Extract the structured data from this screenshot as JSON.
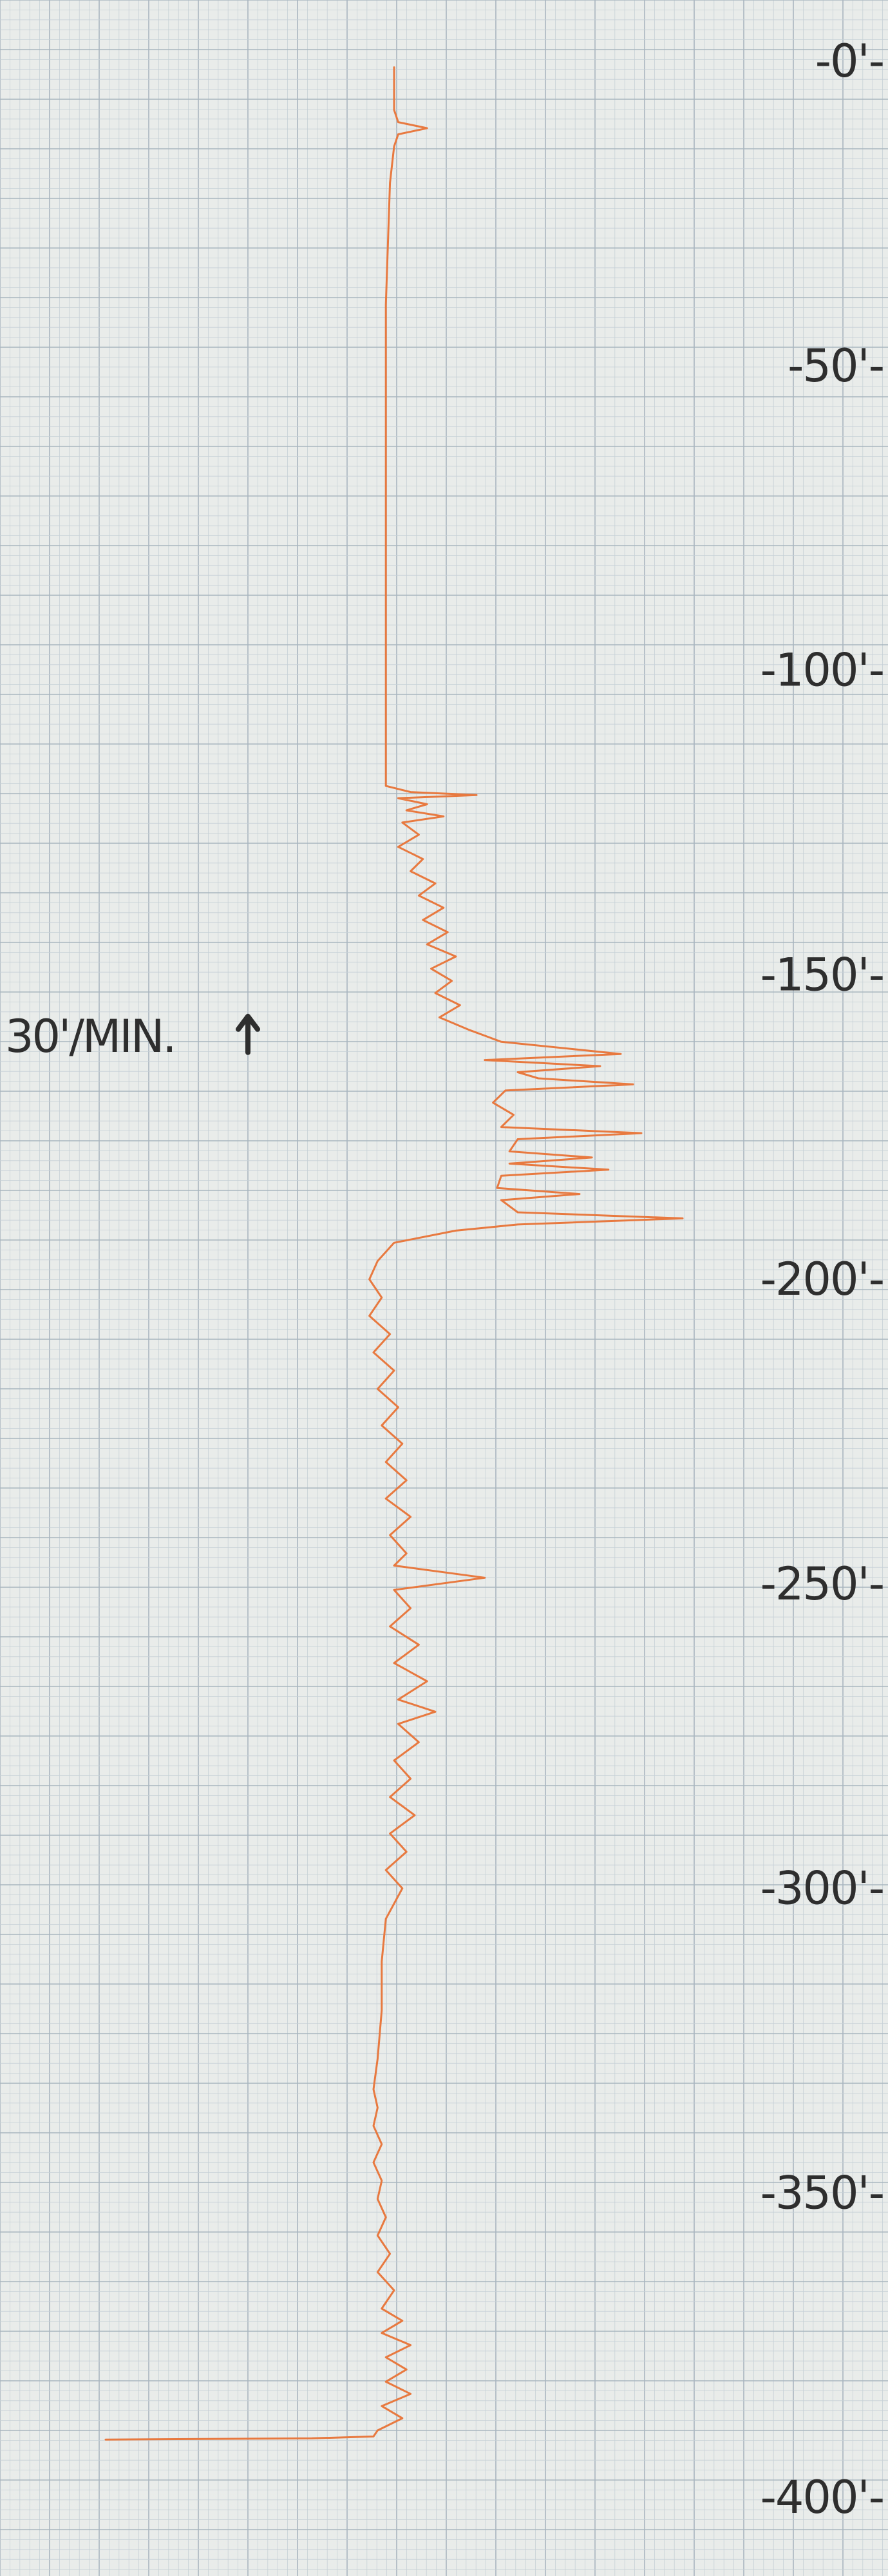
{
  "chart_data": {
    "type": "line",
    "title": "",
    "xlabel": "",
    "ylabel": "",
    "ylim": [
      0,
      400
    ],
    "y_inverted": true,
    "grid": true,
    "colors": {
      "paper": "#e9ecea",
      "grid_minor": "#c6d0d6",
      "grid_major": "#a9b6bf",
      "trace": "#e8793f",
      "text": "#2e2e2e"
    },
    "depth_tick_labels": [
      "-0'-",
      "-50'-",
      "-100'-",
      "-150'-",
      "-200'-",
      "-250'-",
      "-300'-",
      "-350'-",
      "-400'-"
    ],
    "depth_tick_values": [
      0,
      50,
      100,
      150,
      200,
      250,
      300,
      350,
      400
    ],
    "annotation": {
      "text": "30'/MIN.",
      "arrow": "up-arrow-icon",
      "depth": 160
    },
    "series": [
      {
        "points": [
          {
            "x": 30,
            "y": 1
          },
          {
            "x": 30,
            "y": 8
          },
          {
            "x": 31,
            "y": 10
          },
          {
            "x": 38,
            "y": 11
          },
          {
            "x": 31,
            "y": 12
          },
          {
            "x": 30,
            "y": 14
          },
          {
            "x": 29,
            "y": 20
          },
          {
            "x": 28,
            "y": 40
          },
          {
            "x": 28,
            "y": 60
          },
          {
            "x": 28,
            "y": 80
          },
          {
            "x": 28,
            "y": 100
          },
          {
            "x": 28,
            "y": 110
          },
          {
            "x": 28,
            "y": 119
          },
          {
            "x": 34,
            "y": 120
          },
          {
            "x": 50,
            "y": 120.5
          },
          {
            "x": 31,
            "y": 121
          },
          {
            "x": 38,
            "y": 122
          },
          {
            "x": 33,
            "y": 123
          },
          {
            "x": 42,
            "y": 124
          },
          {
            "x": 32,
            "y": 125
          },
          {
            "x": 36,
            "y": 127
          },
          {
            "x": 31,
            "y": 129
          },
          {
            "x": 37,
            "y": 131
          },
          {
            "x": 34,
            "y": 133
          },
          {
            "x": 40,
            "y": 135
          },
          {
            "x": 36,
            "y": 137
          },
          {
            "x": 42,
            "y": 139
          },
          {
            "x": 37,
            "y": 141
          },
          {
            "x": 43,
            "y": 143
          },
          {
            "x": 38,
            "y": 145
          },
          {
            "x": 45,
            "y": 147
          },
          {
            "x": 39,
            "y": 149
          },
          {
            "x": 44,
            "y": 151
          },
          {
            "x": 40,
            "y": 153
          },
          {
            "x": 46,
            "y": 155
          },
          {
            "x": 41,
            "y": 157
          },
          {
            "x": 48,
            "y": 159
          },
          {
            "x": 56,
            "y": 161
          },
          {
            "x": 85,
            "y": 163
          },
          {
            "x": 52,
            "y": 164
          },
          {
            "x": 80,
            "y": 165
          },
          {
            "x": 60,
            "y": 166
          },
          {
            "x": 65,
            "y": 167
          },
          {
            "x": 88,
            "y": 168
          },
          {
            "x": 57,
            "y": 169
          },
          {
            "x": 54,
            "y": 171
          },
          {
            "x": 59,
            "y": 173
          },
          {
            "x": 56,
            "y": 175
          },
          {
            "x": 90,
            "y": 176
          },
          {
            "x": 60,
            "y": 177
          },
          {
            "x": 58,
            "y": 179
          },
          {
            "x": 78,
            "y": 180
          },
          {
            "x": 58,
            "y": 181
          },
          {
            "x": 82,
            "y": 182
          },
          {
            "x": 56,
            "y": 183
          },
          {
            "x": 55,
            "y": 185
          },
          {
            "x": 75,
            "y": 186
          },
          {
            "x": 56,
            "y": 187
          },
          {
            "x": 60,
            "y": 189
          },
          {
            "x": 100,
            "y": 190
          },
          {
            "x": 60,
            "y": 191
          },
          {
            "x": 45,
            "y": 192
          },
          {
            "x": 30,
            "y": 194
          },
          {
            "x": 26,
            "y": 197
          },
          {
            "x": 24,
            "y": 200
          },
          {
            "x": 27,
            "y": 203
          },
          {
            "x": 24,
            "y": 206
          },
          {
            "x": 29,
            "y": 209
          },
          {
            "x": 25,
            "y": 212
          },
          {
            "x": 30,
            "y": 215
          },
          {
            "x": 26,
            "y": 218
          },
          {
            "x": 31,
            "y": 221
          },
          {
            "x": 27,
            "y": 224
          },
          {
            "x": 32,
            "y": 227
          },
          {
            "x": 28,
            "y": 230
          },
          {
            "x": 33,
            "y": 233
          },
          {
            "x": 28,
            "y": 236
          },
          {
            "x": 34,
            "y": 239
          },
          {
            "x": 29,
            "y": 242
          },
          {
            "x": 33,
            "y": 245
          },
          {
            "x": 30,
            "y": 247
          },
          {
            "x": 52,
            "y": 249
          },
          {
            "x": 30,
            "y": 251
          },
          {
            "x": 34,
            "y": 254
          },
          {
            "x": 29,
            "y": 257
          },
          {
            "x": 36,
            "y": 260
          },
          {
            "x": 30,
            "y": 263
          },
          {
            "x": 38,
            "y": 266
          },
          {
            "x": 31,
            "y": 269
          },
          {
            "x": 40,
            "y": 271
          },
          {
            "x": 31,
            "y": 273
          },
          {
            "x": 36,
            "y": 276
          },
          {
            "x": 30,
            "y": 279
          },
          {
            "x": 34,
            "y": 282
          },
          {
            "x": 29,
            "y": 285
          },
          {
            "x": 35,
            "y": 288
          },
          {
            "x": 29,
            "y": 291
          },
          {
            "x": 33,
            "y": 294
          },
          {
            "x": 28,
            "y": 297
          },
          {
            "x": 32,
            "y": 300
          },
          {
            "x": 28,
            "y": 305
          },
          {
            "x": 27,
            "y": 312
          },
          {
            "x": 27,
            "y": 320
          },
          {
            "x": 26,
            "y": 328
          },
          {
            "x": 25,
            "y": 333
          },
          {
            "x": 26,
            "y": 336
          },
          {
            "x": 25,
            "y": 339
          },
          {
            "x": 27,
            "y": 342
          },
          {
            "x": 25,
            "y": 345
          },
          {
            "x": 27,
            "y": 348
          },
          {
            "x": 26,
            "y": 351
          },
          {
            "x": 28,
            "y": 354
          },
          {
            "x": 26,
            "y": 357
          },
          {
            "x": 29,
            "y": 360
          },
          {
            "x": 26,
            "y": 363
          },
          {
            "x": 30,
            "y": 366
          },
          {
            "x": 27,
            "y": 369
          },
          {
            "x": 32,
            "y": 371
          },
          {
            "x": 27,
            "y": 373
          },
          {
            "x": 34,
            "y": 375
          },
          {
            "x": 28,
            "y": 377
          },
          {
            "x": 33,
            "y": 379
          },
          {
            "x": 28,
            "y": 381
          },
          {
            "x": 34,
            "y": 383
          },
          {
            "x": 27,
            "y": 385
          },
          {
            "x": 32,
            "y": 387
          },
          {
            "x": 26,
            "y": 389
          },
          {
            "x": 25,
            "y": 390
          },
          {
            "x": 10,
            "y": 390.3
          },
          {
            "x": -40,
            "y": 390.5
          }
        ]
      }
    ]
  }
}
